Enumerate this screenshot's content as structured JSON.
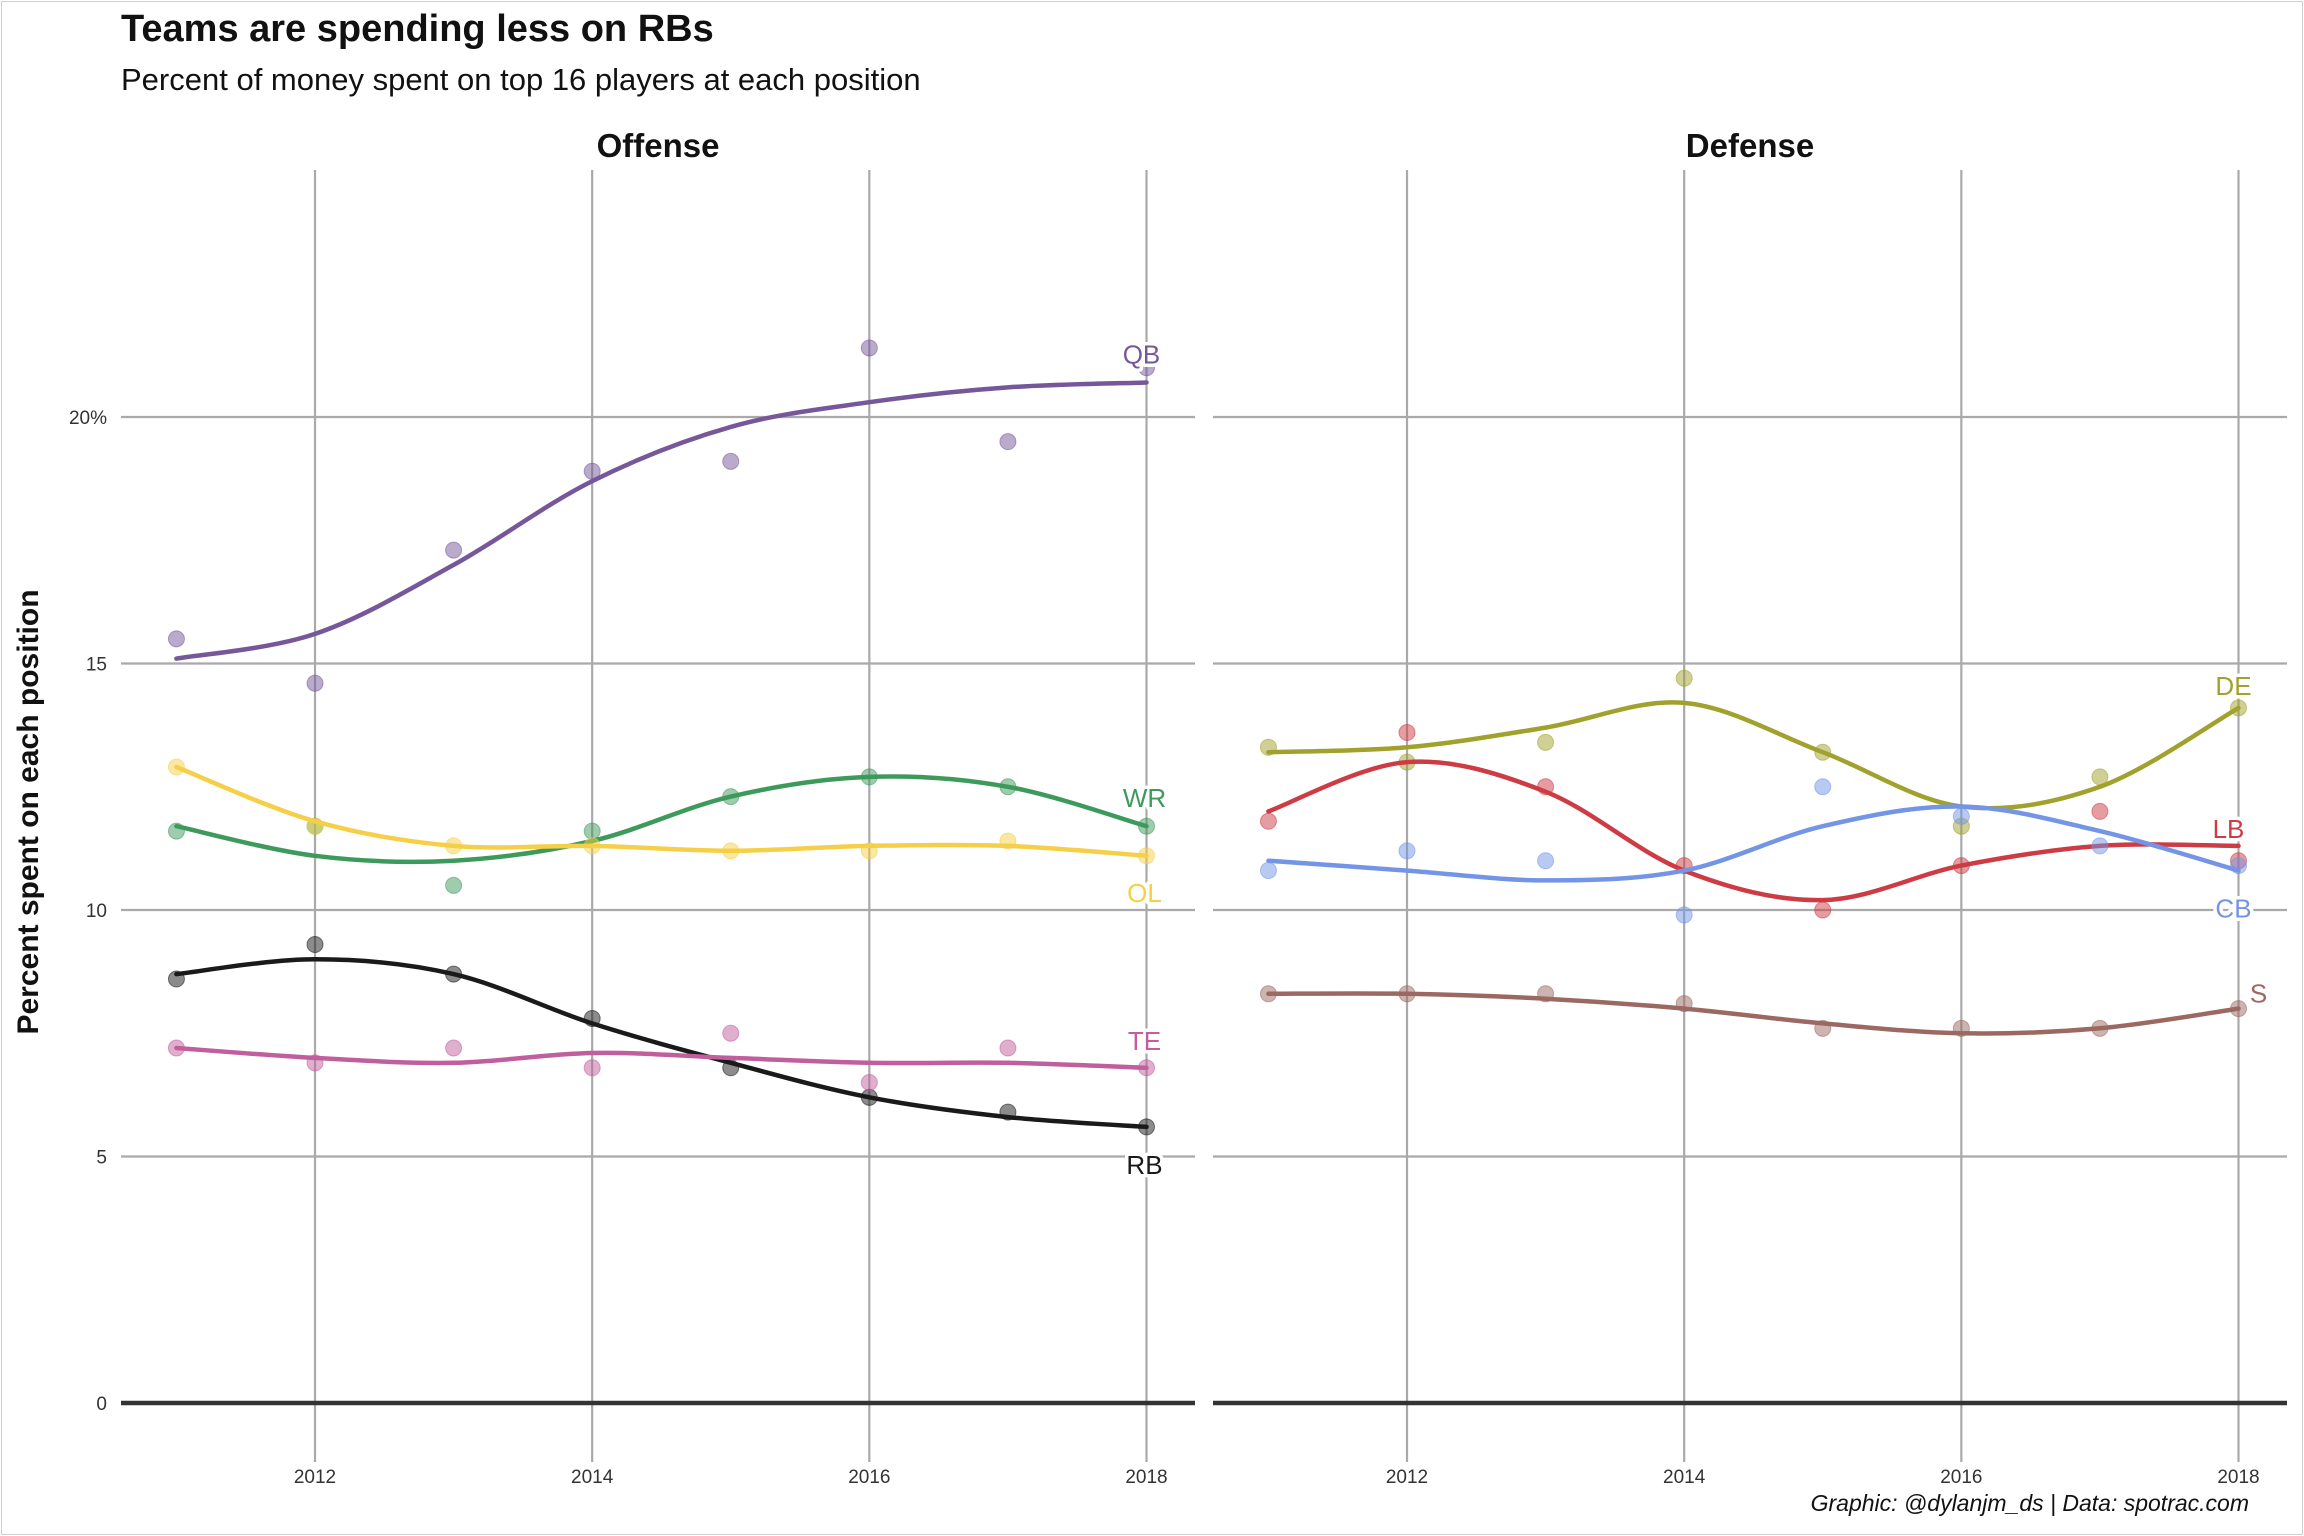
{
  "title": "Teams are spending less on RBs",
  "subtitle": "Percent of money spent on top 16 players at each position",
  "caption": "Graphic: @dylanjm_ds | Data: spotrac.com",
  "chart_data": {
    "type": "scatter",
    "ylabel": "Percent spent on each position",
    "xlabel": "",
    "ylim": [
      0,
      25
    ],
    "yticks": [
      0,
      5,
      10,
      15,
      20
    ],
    "ytick_labels": [
      "0",
      "5",
      "10",
      "15",
      "20%"
    ],
    "xlim": [
      2010.6,
      2018.35
    ],
    "xticks": [
      2012,
      2014,
      2016,
      2018
    ],
    "xtick_labels": [
      "2012",
      "2014",
      "2016",
      "2018"
    ],
    "grid": true,
    "overlay": "smoothed trend line per series",
    "panels": [
      {
        "name": "Offense",
        "series": [
          {
            "name": "QB",
            "color": "#76579a",
            "x": [
              2011,
              2012,
              2013,
              2014,
              2015,
              2016,
              2017,
              2018
            ],
            "y": [
              15.5,
              14.6,
              17.3,
              18.9,
              19.1,
              21.4,
              19.5,
              21.0
            ],
            "trend": [
              15.1,
              15.6,
              17.0,
              18.7,
              19.8,
              20.3,
              20.6,
              20.7
            ]
          },
          {
            "name": "WR",
            "color": "#3e9a5c",
            "x": [
              2011,
              2012,
              2013,
              2014,
              2015,
              2016,
              2017,
              2018
            ],
            "y": [
              11.6,
              11.7,
              10.5,
              11.6,
              12.3,
              12.7,
              12.5,
              11.7
            ],
            "trend": [
              11.7,
              11.1,
              11.0,
              11.4,
              12.3,
              12.7,
              12.5,
              11.7
            ]
          },
          {
            "name": "OL",
            "color": "#f5cf47",
            "x": [
              2011,
              2012,
              2013,
              2014,
              2015,
              2016,
              2017,
              2018
            ],
            "y": [
              12.9,
              11.7,
              11.3,
              11.3,
              11.2,
              11.2,
              11.4,
              11.1
            ],
            "trend": [
              12.9,
              11.8,
              11.3,
              11.3,
              11.2,
              11.3,
              11.3,
              11.1
            ]
          },
          {
            "name": "RB",
            "color": "#1a1a1a",
            "x": [
              2011,
              2012,
              2013,
              2014,
              2015,
              2016,
              2017,
              2018
            ],
            "y": [
              8.6,
              9.3,
              8.7,
              7.8,
              6.8,
              6.2,
              5.9,
              5.6
            ],
            "trend": [
              8.7,
              9.0,
              8.7,
              7.7,
              6.9,
              6.2,
              5.8,
              5.6
            ]
          },
          {
            "name": "TE",
            "color": "#c15f9e",
            "x": [
              2011,
              2012,
              2013,
              2014,
              2015,
              2016,
              2017,
              2018
            ],
            "y": [
              7.2,
              6.9,
              7.2,
              6.8,
              7.5,
              6.5,
              7.2,
              6.8
            ],
            "trend": [
              7.2,
              7.0,
              6.9,
              7.1,
              7.0,
              6.9,
              6.9,
              6.8
            ]
          }
        ]
      },
      {
        "name": "Defense",
        "series": [
          {
            "name": "DE",
            "color": "#a1a12d",
            "x": [
              2011,
              2012,
              2013,
              2014,
              2015,
              2016,
              2017,
              2018
            ],
            "y": [
              13.3,
              13.0,
              13.4,
              14.7,
              13.2,
              11.7,
              12.7,
              14.1
            ],
            "trend": [
              13.2,
              13.3,
              13.7,
              14.2,
              13.2,
              12.1,
              12.5,
              14.1
            ]
          },
          {
            "name": "LB",
            "color": "#cd3b44",
            "x": [
              2011,
              2012,
              2013,
              2014,
              2015,
              2016,
              2017,
              2018
            ],
            "y": [
              11.8,
              13.6,
              12.5,
              10.9,
              10.0,
              10.9,
              12.0,
              11.0
            ],
            "trend": [
              12.0,
              13.0,
              12.4,
              10.8,
              10.2,
              10.9,
              11.3,
              11.3
            ]
          },
          {
            "name": "CB",
            "color": "#7495e6",
            "x": [
              2011,
              2012,
              2013,
              2014,
              2015,
              2016,
              2017,
              2018
            ],
            "y": [
              10.8,
              11.2,
              11.0,
              9.9,
              12.5,
              11.9,
              11.3,
              10.9
            ],
            "trend": [
              11.0,
              10.8,
              10.6,
              10.8,
              11.7,
              12.1,
              11.6,
              10.8
            ]
          },
          {
            "name": "S",
            "color": "#9b6962",
            "x": [
              2011,
              2012,
              2013,
              2014,
              2015,
              2016,
              2017,
              2018
            ],
            "y": [
              8.3,
              8.3,
              8.3,
              8.1,
              7.6,
              7.6,
              7.6,
              8.0
            ],
            "trend": [
              8.3,
              8.3,
              8.2,
              8.0,
              7.7,
              7.5,
              7.6,
              8.0
            ]
          }
        ]
      }
    ]
  }
}
